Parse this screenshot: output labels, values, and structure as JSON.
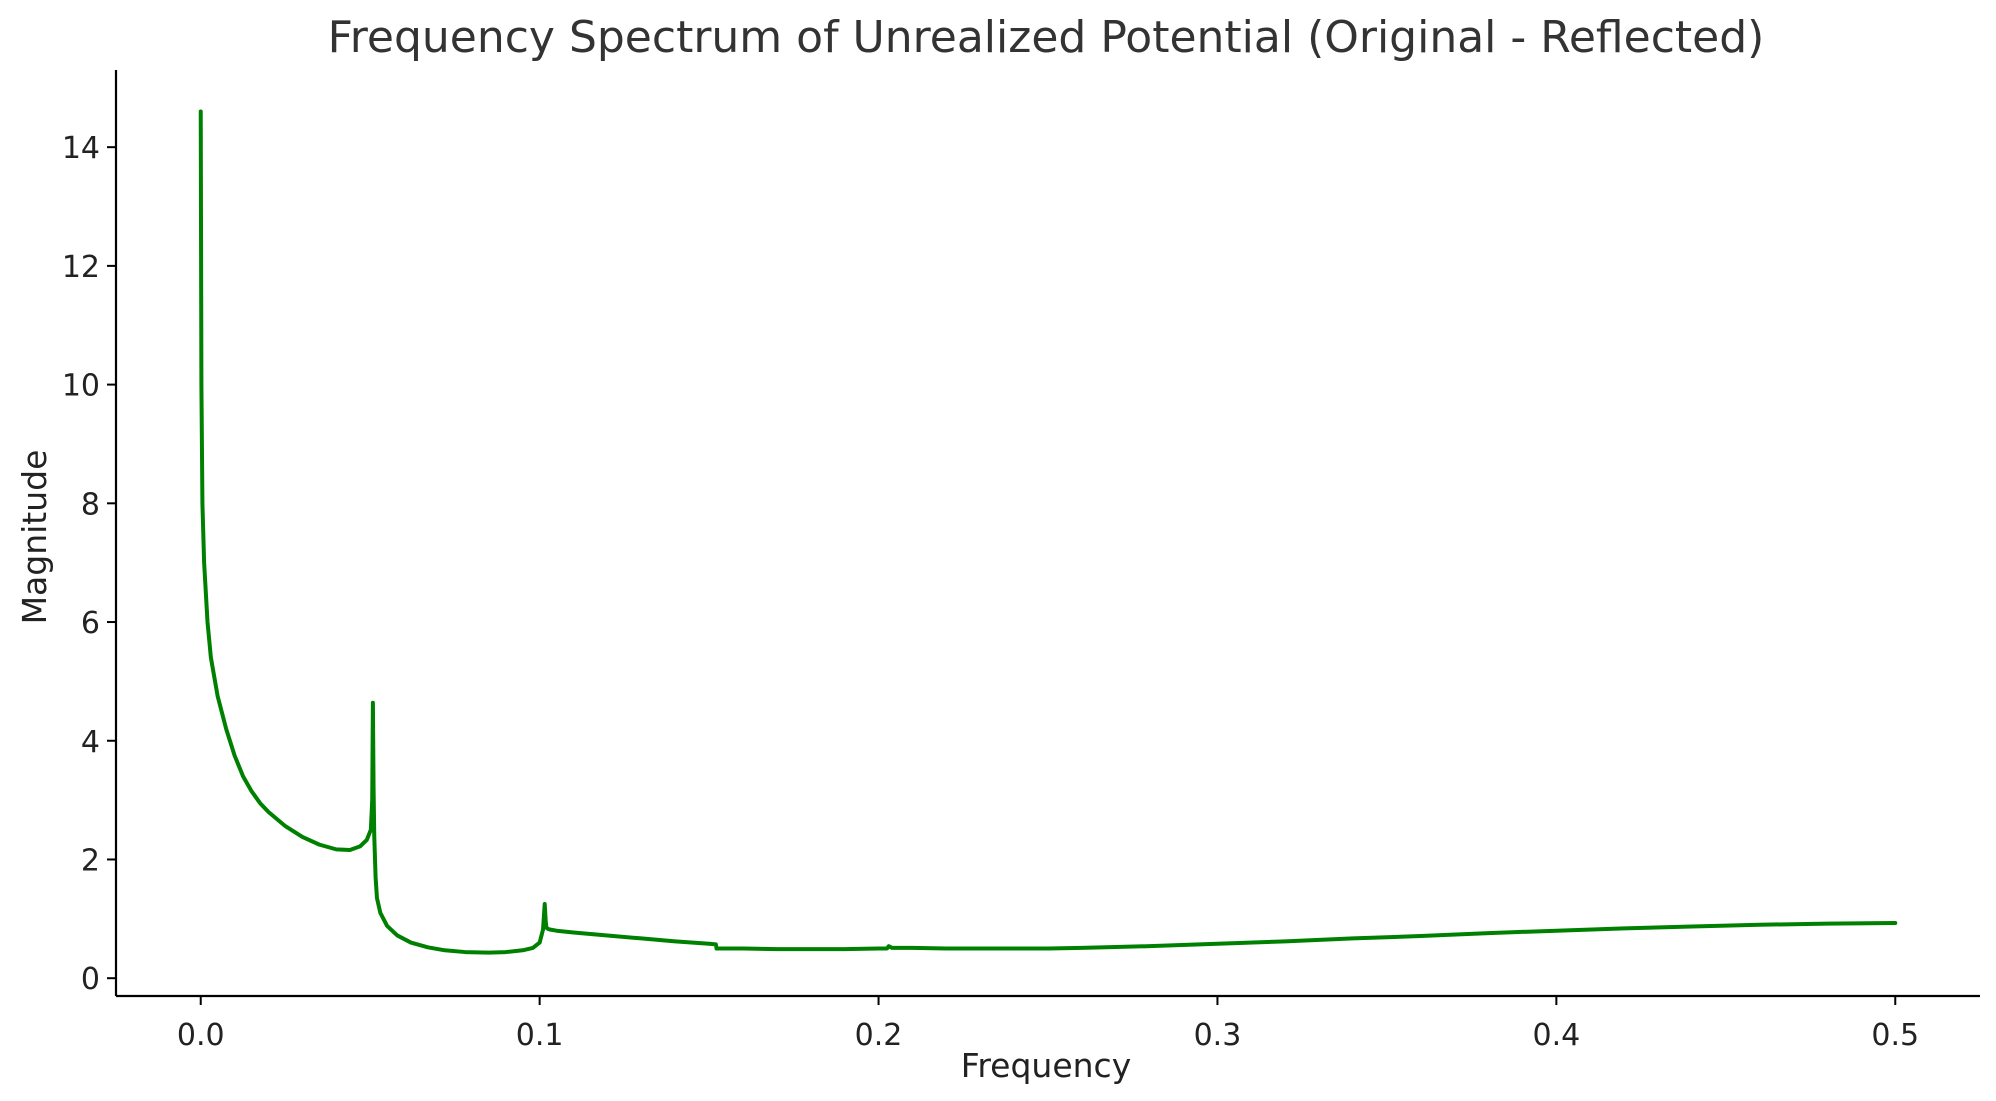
{
  "chart_data": {
    "type": "line",
    "title": "Frequency Spectrum of Unrealized Potential (Original - Reflected)",
    "xlabel": "Frequency",
    "ylabel": "Magnitude",
    "xlim": [
      -0.025,
      0.525
    ],
    "ylim": [
      -0.3,
      15.3
    ],
    "xticks": [
      0.0,
      0.1,
      0.2,
      0.3,
      0.4,
      0.5
    ],
    "xtick_labels": [
      "0.0",
      "0.1",
      "0.2",
      "0.3",
      "0.4",
      "0.5"
    ],
    "yticks": [
      0,
      2,
      4,
      6,
      8,
      10,
      12,
      14
    ],
    "ytick_labels": [
      "0",
      "2",
      "4",
      "6",
      "8",
      "10",
      "12",
      "14"
    ],
    "grid": false,
    "series": [
      {
        "color": "#008000",
        "x": [
          0.0,
          0.0002,
          0.0005,
          0.001,
          0.002,
          0.003,
          0.005,
          0.0075,
          0.01,
          0.0125,
          0.015,
          0.0175,
          0.02,
          0.025,
          0.03,
          0.035,
          0.04,
          0.044,
          0.047,
          0.049,
          0.0502,
          0.0506,
          0.0508,
          0.051,
          0.0512,
          0.0516,
          0.052,
          0.053,
          0.055,
          0.058,
          0.062,
          0.067,
          0.072,
          0.078,
          0.085,
          0.09,
          0.095,
          0.098,
          0.1,
          0.101,
          0.1015,
          0.1018,
          0.102,
          0.1022,
          0.1025,
          0.103,
          0.105,
          0.11,
          0.12,
          0.13,
          0.14,
          0.15,
          0.152,
          0.1522,
          0.16,
          0.17,
          0.18,
          0.19,
          0.2,
          0.2025,
          0.203,
          0.204,
          0.21,
          0.22,
          0.23,
          0.24,
          0.25,
          0.26,
          0.28,
          0.3,
          0.32,
          0.34,
          0.36,
          0.38,
          0.4,
          0.42,
          0.44,
          0.46,
          0.48,
          0.5
        ],
        "y": [
          14.6,
          10.0,
          8.0,
          7.0,
          6.0,
          5.4,
          4.75,
          4.2,
          3.75,
          3.4,
          3.15,
          2.95,
          2.8,
          2.56,
          2.38,
          2.25,
          2.17,
          2.16,
          2.22,
          2.33,
          2.5,
          3.0,
          4.64,
          3.2,
          2.4,
          1.7,
          1.35,
          1.1,
          0.88,
          0.72,
          0.6,
          0.52,
          0.47,
          0.44,
          0.43,
          0.44,
          0.47,
          0.51,
          0.6,
          0.82,
          1.25,
          0.95,
          0.86,
          0.84,
          0.83,
          0.82,
          0.8,
          0.77,
          0.72,
          0.67,
          0.62,
          0.58,
          0.57,
          0.5,
          0.5,
          0.49,
          0.49,
          0.49,
          0.5,
          0.5,
          0.54,
          0.51,
          0.51,
          0.5,
          0.5,
          0.5,
          0.5,
          0.51,
          0.54,
          0.58,
          0.62,
          0.67,
          0.71,
          0.76,
          0.8,
          0.84,
          0.87,
          0.9,
          0.92,
          0.93
        ]
      }
    ]
  }
}
